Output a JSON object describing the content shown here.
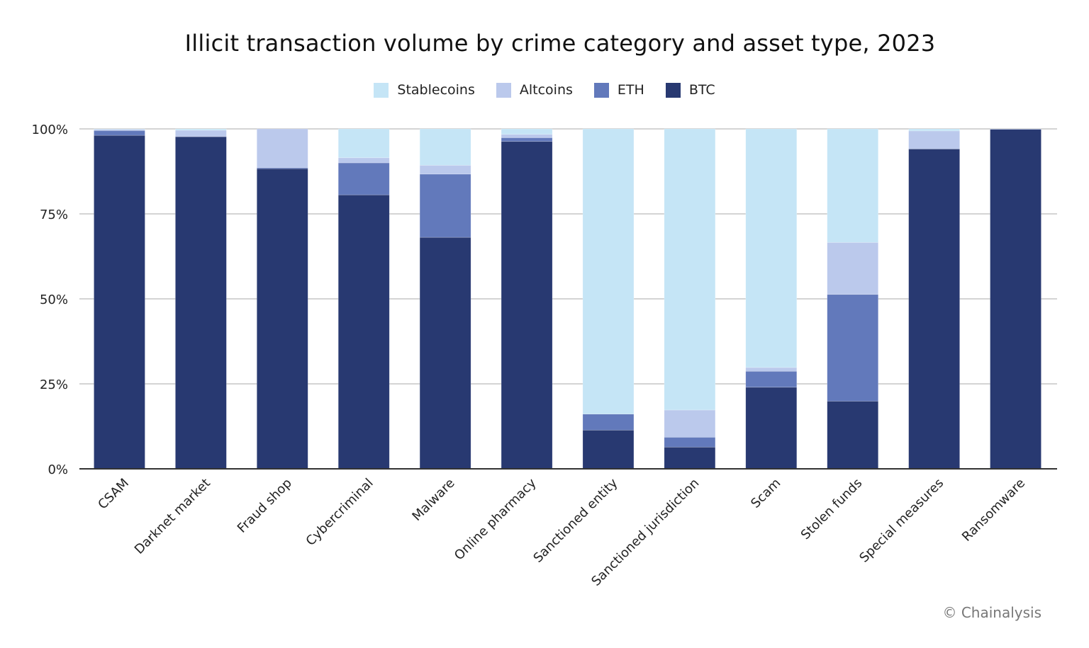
{
  "chart_data": {
    "type": "bar",
    "stacked": true,
    "title": "Illicit transaction volume by crime category and asset type, 2023",
    "xlabel": "",
    "ylabel": "",
    "ylim": [
      0,
      100
    ],
    "yticks": [
      "0%",
      "25%",
      "50%",
      "75%",
      "100%"
    ],
    "ytick_values": [
      0,
      25,
      50,
      75,
      100
    ],
    "grid": true,
    "legend_position": "top",
    "categories": [
      "CSAM",
      "Darknet market",
      "Fraud shop",
      "Cybercriminal",
      "Malware",
      "Online pharmacy",
      "Sanctioned entity",
      "Sanctioned jurisdiction",
      "Scam",
      "Stolen funds",
      "Special measures",
      "Ransomware"
    ],
    "series": [
      {
        "name": "BTC",
        "color": "#283971",
        "values": [
          98.1,
          97.7,
          88.3,
          80.6,
          68.1,
          96.3,
          11.4,
          6.4,
          24.0,
          19.9,
          94.1,
          99.9
        ]
      },
      {
        "name": "ETH",
        "color": "#6279bb",
        "values": [
          1.4,
          0.1,
          0.3,
          9.4,
          18.6,
          1.1,
          4.7,
          2.9,
          4.7,
          31.4,
          0.0,
          0.0
        ]
      },
      {
        "name": "Altcoins",
        "color": "#bbc9ec",
        "values": [
          0.4,
          1.8,
          11.4,
          1.5,
          2.6,
          1.0,
          0.0,
          8.0,
          1.1,
          15.3,
          5.3,
          0.1
        ]
      },
      {
        "name": "Stablecoins",
        "color": "#c5e5f6",
        "values": [
          0.1,
          0.4,
          0.0,
          8.5,
          10.7,
          1.6,
          83.9,
          82.7,
          70.2,
          33.4,
          0.6,
          0.0
        ]
      }
    ],
    "legend_order": [
      "Stablecoins",
      "Altcoins",
      "ETH",
      "BTC"
    ]
  },
  "credit": "© Chainalysis"
}
